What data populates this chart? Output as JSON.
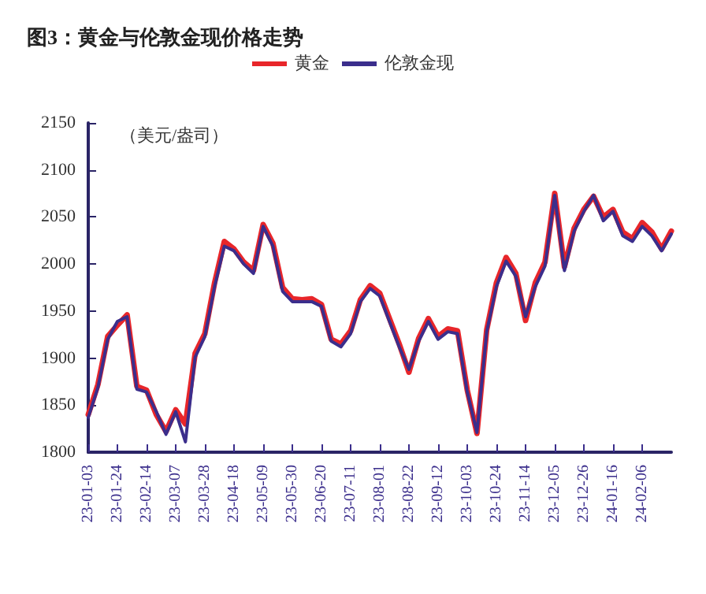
{
  "chart_data": {
    "type": "line",
    "title": "图3：黄金与伦敦金现价格走势",
    "ylabel": "（美元/盎司）",
    "categories": [
      "23-01-03",
      null,
      null,
      "23-01-24",
      null,
      null,
      "23-02-14",
      null,
      null,
      "23-03-07",
      null,
      null,
      "23-03-28",
      null,
      null,
      "23-04-18",
      null,
      null,
      "23-05-09",
      null,
      null,
      "23-05-30",
      null,
      null,
      "23-06-20",
      null,
      null,
      "23-07-11",
      null,
      null,
      "23-08-01",
      null,
      null,
      "23-08-22",
      null,
      null,
      "23-09-12",
      null,
      null,
      "23-10-03",
      null,
      null,
      "23-10-24",
      null,
      null,
      "23-11-14",
      null,
      null,
      "23-12-05",
      null,
      null,
      "23-12-26",
      null,
      null,
      "24-01-16",
      null,
      null,
      "24-02-06",
      null,
      null,
      null
    ],
    "series": [
      {
        "name": "黄金",
        "color": "#e8262a",
        "values": [
          1840,
          1872,
          1923,
          1935,
          1946,
          1870,
          1866,
          1840,
          1822,
          1845,
          1830,
          1905,
          1926,
          1980,
          2024,
          2016,
          2002,
          1993,
          2042,
          2022,
          1975,
          1963,
          1962,
          1963,
          1957,
          1920,
          1915,
          1929,
          1962,
          1977,
          1969,
          1942,
          1915,
          1885,
          1921,
          1942,
          1923,
          1931,
          1929,
          1866,
          1820,
          1930,
          1980,
          2007,
          1990,
          1940,
          1980,
          2002,
          2075,
          1997,
          2038,
          2058,
          2072,
          2050,
          2058,
          2034,
          2027,
          2044,
          2034,
          2016,
          2035
        ]
      },
      {
        "name": "伦敦金现",
        "color": "#3b2e8c",
        "values": [
          1837,
          1869,
          1920,
          1939,
          1944,
          1867,
          1864,
          1843,
          1819,
          1843,
          1811,
          1901,
          1923,
          1976,
          2019,
          2014,
          2000,
          1990,
          2040,
          2019,
          1971,
          1960,
          1960,
          1960,
          1955,
          1918,
          1912,
          1926,
          1960,
          1974,
          1966,
          1939,
          1912,
          1888,
          1918,
          1939,
          1920,
          1928,
          1926,
          1864,
          1821,
          1928,
          1976,
          2003,
          1987,
          1944,
          1976,
          1998,
          2073,
          1993,
          2035,
          2056,
          2073,
          2046,
          2056,
          2030,
          2024,
          2040,
          2030,
          2014,
          2032
        ]
      }
    ],
    "ylim": [
      1800,
      2150
    ],
    "yticks": [
      1800,
      1850,
      1900,
      1950,
      2000,
      2050,
      2100,
      2150
    ],
    "grid": false,
    "legend": "top",
    "marker": "none",
    "line_style": "solid"
  }
}
